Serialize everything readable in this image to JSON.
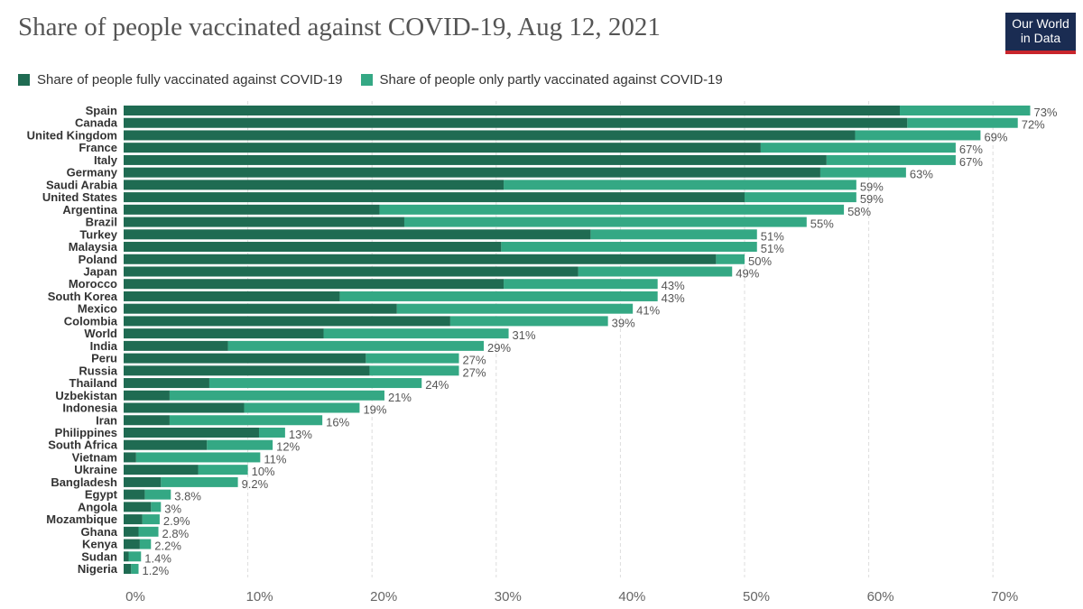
{
  "chart_data": {
    "type": "bar",
    "orientation": "horizontal",
    "stacked": true,
    "title": "Share of people vaccinated against COVID-19, Aug 12, 2021",
    "xlim": [
      0,
      70
    ],
    "x_ticks": [
      "0%",
      "10%",
      "20%",
      "30%",
      "40%",
      "50%",
      "60%",
      "70%"
    ],
    "grid": "vertical dashed",
    "legend_position": "top",
    "categories": [
      "Spain",
      "Canada",
      "United Kingdom",
      "France",
      "Italy",
      "Germany",
      "Saudi Arabia",
      "United States",
      "Argentina",
      "Brazil",
      "Turkey",
      "Malaysia",
      "Poland",
      "Japan",
      "Morocco",
      "South Korea",
      "Mexico",
      "Colombia",
      "World",
      "India",
      "Peru",
      "Russia",
      "Thailand",
      "Uzbekistan",
      "Indonesia",
      "Iran",
      "Philippines",
      "South Africa",
      "Vietnam",
      "Ukraine",
      "Bangladesh",
      "Egypt",
      "Angola",
      "Mozambique",
      "Ghana",
      "Kenya",
      "Sudan",
      "Nigeria"
    ],
    "series": [
      {
        "name": "Share of people fully vaccinated against COVID-19",
        "color": "#1f6b52",
        "values": [
          62.5,
          63.1,
          58.9,
          51.3,
          56.6,
          56.1,
          30.6,
          50.0,
          20.6,
          22.6,
          37.6,
          30.4,
          47.7,
          36.6,
          30.6,
          17.4,
          22.0,
          26.3,
          16.1,
          8.4,
          19.5,
          19.8,
          6.9,
          3.7,
          9.7,
          3.7,
          10.9,
          6.7,
          1.0,
          6.0,
          3.0,
          1.7,
          2.2,
          1.5,
          1.2,
          1.3,
          0.4,
          0.6
        ]
      },
      {
        "name": "Share of people only partly vaccinated against COVID-19",
        "color": "#34a884",
        "totals": [
          73,
          72,
          69,
          67,
          67,
          63,
          59,
          59,
          58,
          55,
          51,
          51,
          50,
          49,
          43,
          43,
          41,
          39,
          31,
          29,
          27,
          27,
          24,
          21,
          19,
          16,
          13,
          12,
          11,
          10,
          9.2,
          3.8,
          3,
          2.9,
          2.8,
          2.2,
          1.4,
          1.2
        ]
      }
    ],
    "total_labels": [
      "73%",
      "72%",
      "69%",
      "67%",
      "67%",
      "63%",
      "59%",
      "59%",
      "58%",
      "55%",
      "51%",
      "51%",
      "50%",
      "49%",
      "43%",
      "43%",
      "41%",
      "39%",
      "31%",
      "29%",
      "27%",
      "27%",
      "24%",
      "21%",
      "19%",
      "16%",
      "13%",
      "12%",
      "11%",
      "10%",
      "9.2%",
      "3.8%",
      "3%",
      "2.9%",
      "2.8%",
      "2.2%",
      "1.4%",
      "1.2%"
    ]
  },
  "logo": {
    "line1": "Our World",
    "line2": "in Data"
  },
  "colors": {
    "full": "#1f6b52",
    "partial": "#34a884",
    "logo_bg": "#1a2c52",
    "logo_accent": "#c8252c"
  }
}
